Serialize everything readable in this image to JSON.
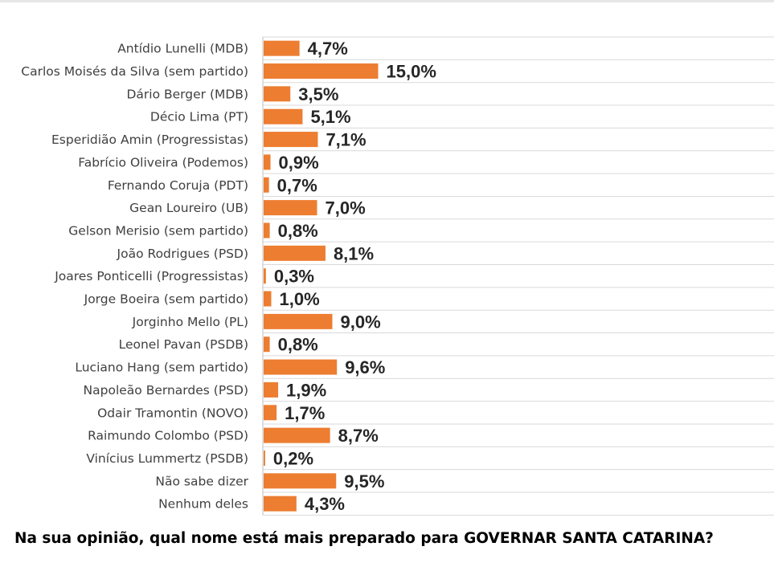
{
  "question": "Na sua opinião, qual nome está mais preparado para GOVERNAR SANTA CATARINA?",
  "colors": {
    "bar": "#ed7d31",
    "gridline": "#d9d9d9",
    "axis": "#bfbfbf"
  },
  "chart_data": {
    "type": "bar",
    "orientation": "horizontal",
    "title": "",
    "xlabel": "",
    "ylabel": "",
    "xlim": [
      0,
      15
    ],
    "grid": true,
    "legend": "none",
    "categories": [
      "Antídio Lunelli (MDB)",
      "Carlos Moisés da Silva (sem partido)",
      "Dário Berger (MDB)",
      "Décio Lima (PT)",
      "Esperidião Amin (Progressistas)",
      "Fabrício Oliveira (Podemos)",
      "Fernando Coruja (PDT)",
      "Gean Loureiro (UB)",
      "Gelson Merisio (sem partido)",
      "João Rodrigues (PSD)",
      "Joares Ponticelli (Progressistas)",
      "Jorge Boeira (sem partido)",
      "Jorginho Mello (PL)",
      "Leonel Pavan (PSDB)",
      "Luciano Hang (sem partido)",
      "Napoleão Bernardes (PSD)",
      "Odair Tramontin (NOVO)",
      "Raimundo Colombo (PSD)",
      "Vinícius Lummertz (PSDB)",
      "Não sabe dizer",
      "Nenhum deles"
    ],
    "values": [
      4.7,
      15.0,
      3.5,
      5.1,
      7.1,
      0.9,
      0.7,
      7.0,
      0.8,
      8.1,
      0.3,
      1.0,
      9.0,
      0.8,
      9.6,
      1.9,
      1.7,
      8.7,
      0.2,
      9.5,
      4.3
    ],
    "data_labels": [
      "4,7%",
      "15,0%",
      "3,5%",
      "5,1%",
      "7,1%",
      "0,9%",
      "0,7%",
      "7,0%",
      "0,8%",
      "8,1%",
      "0,3%",
      "1,0%",
      "9,0%",
      "0,8%",
      "9,6%",
      "1,9%",
      "1,7%",
      "8,7%",
      "0,2%",
      "9,5%",
      "4,3%"
    ]
  }
}
